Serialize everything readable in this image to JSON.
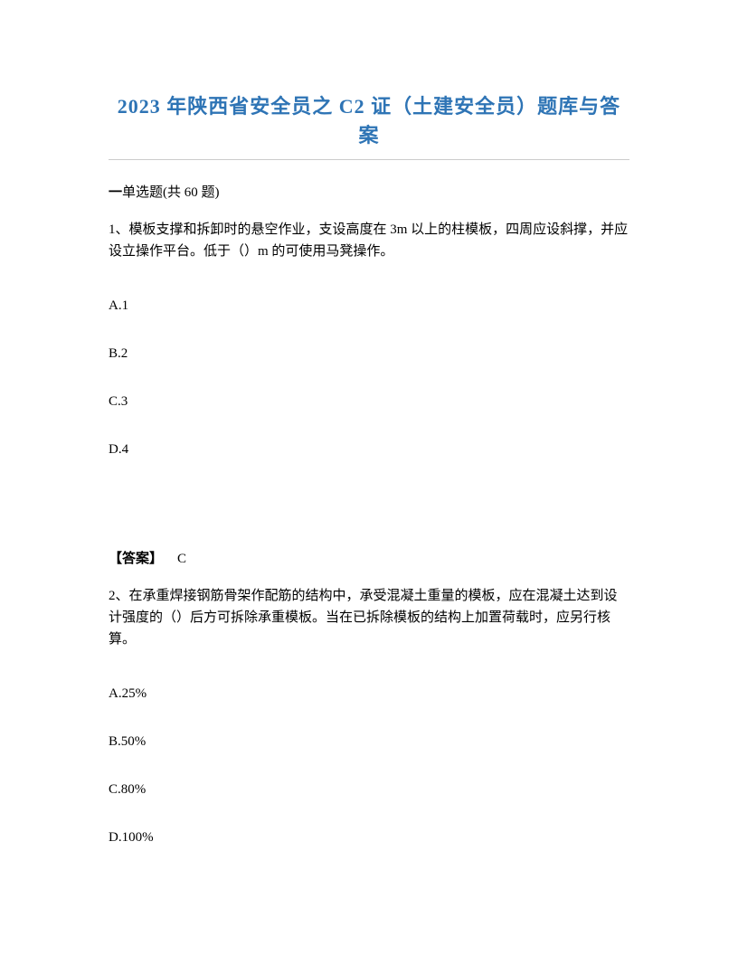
{
  "document": {
    "title": "2023 年陕西省安全员之 C2 证（土建安全员）题库与答案",
    "section_header_prefix": "一",
    "section_header_text": "单选题(共 60 题)",
    "question1": {
      "text": "1、模板支撑和拆卸时的悬空作业，支设高度在 3m 以上的柱模板，四周应设斜撑，并应设立操作平台。低于（）m 的可使用马凳操作。",
      "optionA": "A.1",
      "optionB": "B.2",
      "optionC": "C.3",
      "optionD": "D.4",
      "answer_label": "【答案】",
      "answer_value": "C"
    },
    "question2": {
      "text": "2、在承重焊接钢筋骨架作配筋的结构中，承受混凝土重量的模板，应在混凝土达到设计强度的（）后方可拆除承重模板。当在已拆除模板的结构上加置荷载时，应另行核算。",
      "optionA": "A.25%",
      "optionB": "B.50%",
      "optionC": "C.80%",
      "optionD": "D.100%"
    }
  }
}
